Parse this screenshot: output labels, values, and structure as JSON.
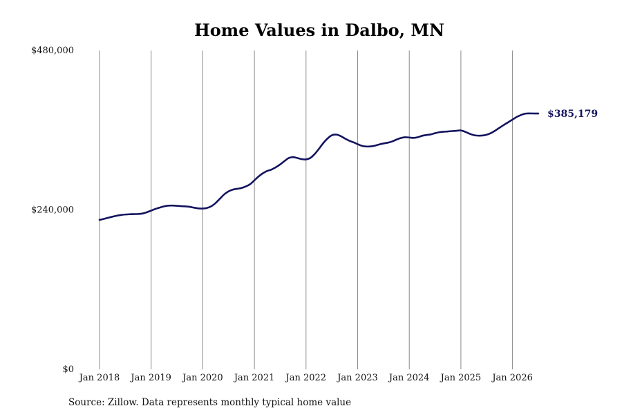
{
  "chart_data": {
    "type": "line",
    "title": "Home Values in Dalbo, MN",
    "xlabel": "",
    "ylabel": "",
    "ylim": [
      0,
      480000
    ],
    "xlim": [
      "Jan 2018",
      "Jul 2026"
    ],
    "grid": {
      "vertical": true,
      "horizontal": false
    },
    "y_ticks": [
      {
        "value": 0,
        "label": "$0"
      },
      {
        "value": 240000,
        "label": "$240,000"
      },
      {
        "value": 480000,
        "label": "$480,000"
      }
    ],
    "x_ticks": [
      {
        "value": "2018-01",
        "label": "Jan 2018"
      },
      {
        "value": "2019-01",
        "label": "Jan 2019"
      },
      {
        "value": "2020-01",
        "label": "Jan 2020"
      },
      {
        "value": "2021-01",
        "label": "Jan 2021"
      },
      {
        "value": "2022-01",
        "label": "Jan 2022"
      },
      {
        "value": "2023-01",
        "label": "Jan 2023"
      },
      {
        "value": "2024-01",
        "label": "Jan 2024"
      },
      {
        "value": "2025-01",
        "label": "Jan 2025"
      },
      {
        "value": "2026-01",
        "label": "Jan 2026"
      }
    ],
    "series": [
      {
        "color": "#13135e",
        "x": [
          "2018-01",
          "2018-02",
          "2018-03",
          "2018-04",
          "2018-05",
          "2018-06",
          "2018-07",
          "2018-08",
          "2018-09",
          "2018-10",
          "2018-11",
          "2018-12",
          "2019-01",
          "2019-02",
          "2019-03",
          "2019-04",
          "2019-05",
          "2019-06",
          "2019-07",
          "2019-08",
          "2019-09",
          "2019-10",
          "2019-11",
          "2019-12",
          "2020-01",
          "2020-02",
          "2020-03",
          "2020-04",
          "2020-05",
          "2020-06",
          "2020-07",
          "2020-08",
          "2020-09",
          "2020-10",
          "2020-11",
          "2020-12",
          "2021-01",
          "2021-02",
          "2021-03",
          "2021-04",
          "2021-05",
          "2021-06",
          "2021-07",
          "2021-08",
          "2021-09",
          "2021-10",
          "2021-11",
          "2021-12",
          "2022-01",
          "2022-02",
          "2022-03",
          "2022-04",
          "2022-05",
          "2022-06",
          "2022-07",
          "2022-08",
          "2022-09",
          "2022-10",
          "2022-11",
          "2022-12",
          "2023-01",
          "2023-02",
          "2023-03",
          "2023-04",
          "2023-05",
          "2023-06",
          "2023-07",
          "2023-08",
          "2023-09",
          "2023-10",
          "2023-11",
          "2023-12",
          "2024-01",
          "2024-02",
          "2024-03",
          "2024-04",
          "2024-05",
          "2024-06",
          "2024-07",
          "2024-08",
          "2024-09",
          "2024-10",
          "2024-11",
          "2024-12",
          "2025-01",
          "2025-02",
          "2025-03",
          "2025-04",
          "2025-05",
          "2025-06",
          "2025-07",
          "2025-08",
          "2025-09",
          "2025-10",
          "2025-11",
          "2025-12",
          "2026-01",
          "2026-02",
          "2026-03",
          "2026-04",
          "2026-05",
          "2026-06",
          "2026-07"
        ],
        "values": [
          225000,
          226500,
          228200,
          229800,
          231300,
          232400,
          233100,
          233500,
          233700,
          233900,
          234600,
          236500,
          239000,
          241500,
          243500,
          245300,
          246400,
          246600,
          246200,
          245700,
          245300,
          244600,
          243300,
          242300,
          242100,
          243000,
          245600,
          250500,
          257000,
          263500,
          268000,
          270600,
          271800,
          273000,
          275300,
          278700,
          284600,
          290500,
          295300,
          298700,
          300900,
          304300,
          308500,
          313600,
          318100,
          319500,
          318100,
          316400,
          316100,
          318200,
          324000,
          332000,
          340500,
          347500,
          352400,
          353400,
          351400,
          347600,
          344300,
          341800,
          339000,
          336500,
          335500,
          335600,
          336700,
          338500,
          340000,
          341200,
          343000,
          345800,
          348200,
          349400,
          349000,
          348500,
          349500,
          351600,
          352800,
          353700,
          355500,
          357000,
          357700,
          358100,
          358700,
          359200,
          359600,
          357600,
          354700,
          352600,
          351800,
          352000,
          353200,
          355800,
          359500,
          363800,
          368000,
          372000,
          376000,
          380000,
          383000,
          385000,
          385300,
          385200,
          385179
        ]
      }
    ],
    "annotations": [
      {
        "x": "2026-07",
        "y": 385179,
        "text": "$385,179"
      }
    ]
  },
  "source_text": "Source: Zillow. Data represents monthly typical home value"
}
